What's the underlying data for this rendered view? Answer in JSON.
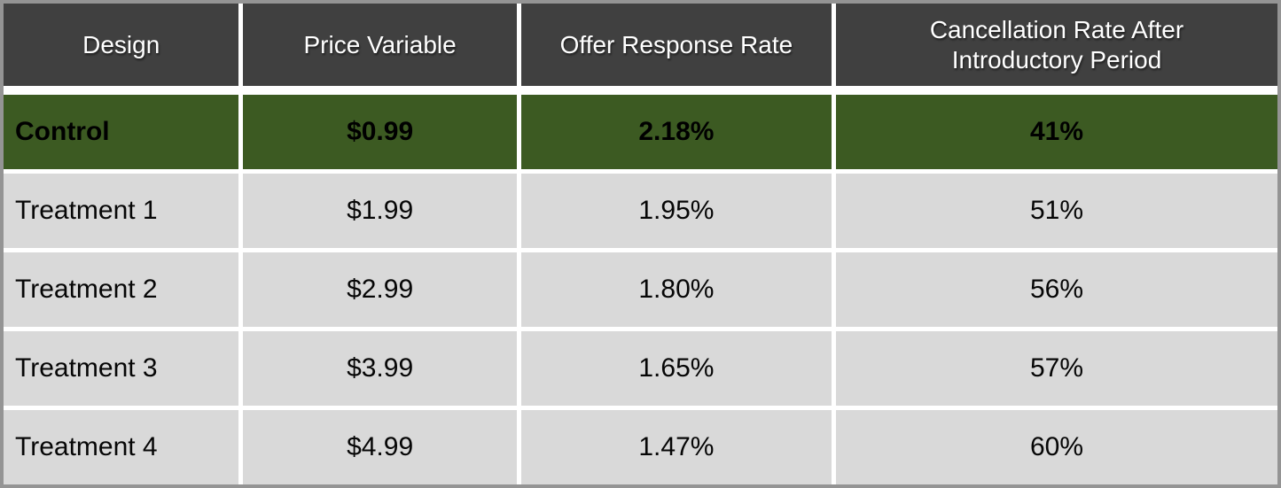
{
  "table": {
    "header": {
      "design": "Design",
      "price": "Price Variable",
      "response": "Offer Response Rate",
      "cancellation": "Cancellation Rate After Introductory Period"
    },
    "rows": [
      {
        "design": "Control",
        "price": "$0.99",
        "response": "2.18%",
        "cancellation": "41%",
        "highlight": true
      },
      {
        "design": "Treatment 1",
        "price": "$1.99",
        "response": "1.95%",
        "cancellation": "51%",
        "highlight": false
      },
      {
        "design": "Treatment 2",
        "price": "$2.99",
        "response": "1.80%",
        "cancellation": "56%",
        "highlight": false
      },
      {
        "design": "Treatment 3",
        "price": "$3.99",
        "response": "1.65%",
        "cancellation": "57%",
        "highlight": false
      },
      {
        "design": "Treatment 4",
        "price": "$4.99",
        "response": "1.47%",
        "cancellation": "60%",
        "highlight": false
      }
    ]
  },
  "colors": {
    "header_background": "#404040",
    "header_text": "#ffffff",
    "highlight_row_background": "#3c5a22",
    "row_background": "#d9d9d9",
    "body_text": "#000000",
    "divider": "#ffffff",
    "frame_border": "#949494"
  },
  "chart_data": {
    "type": "table",
    "title": "",
    "columns": [
      "Design",
      "Price Variable",
      "Offer Response Rate",
      "Cancellation Rate After Introductory Period"
    ],
    "rows": [
      [
        "Control",
        "$0.99",
        "2.18%",
        "41%"
      ],
      [
        "Treatment 1",
        "$1.99",
        "1.95%",
        "51%"
      ],
      [
        "Treatment 2",
        "$2.99",
        "1.80%",
        "56%"
      ],
      [
        "Treatment 3",
        "$3.99",
        "1.65%",
        "57%"
      ],
      [
        "Treatment 4",
        "$4.99",
        "1.47%",
        "60%"
      ]
    ],
    "highlighted_row": "Control",
    "numeric": {
      "price_variable_usd": [
        0.99,
        1.99,
        2.99,
        3.99,
        4.99
      ],
      "offer_response_rate_pct": [
        2.18,
        1.95,
        1.8,
        1.65,
        1.47
      ],
      "cancellation_rate_after_intro_pct": [
        41,
        51,
        56,
        57,
        60
      ]
    }
  }
}
